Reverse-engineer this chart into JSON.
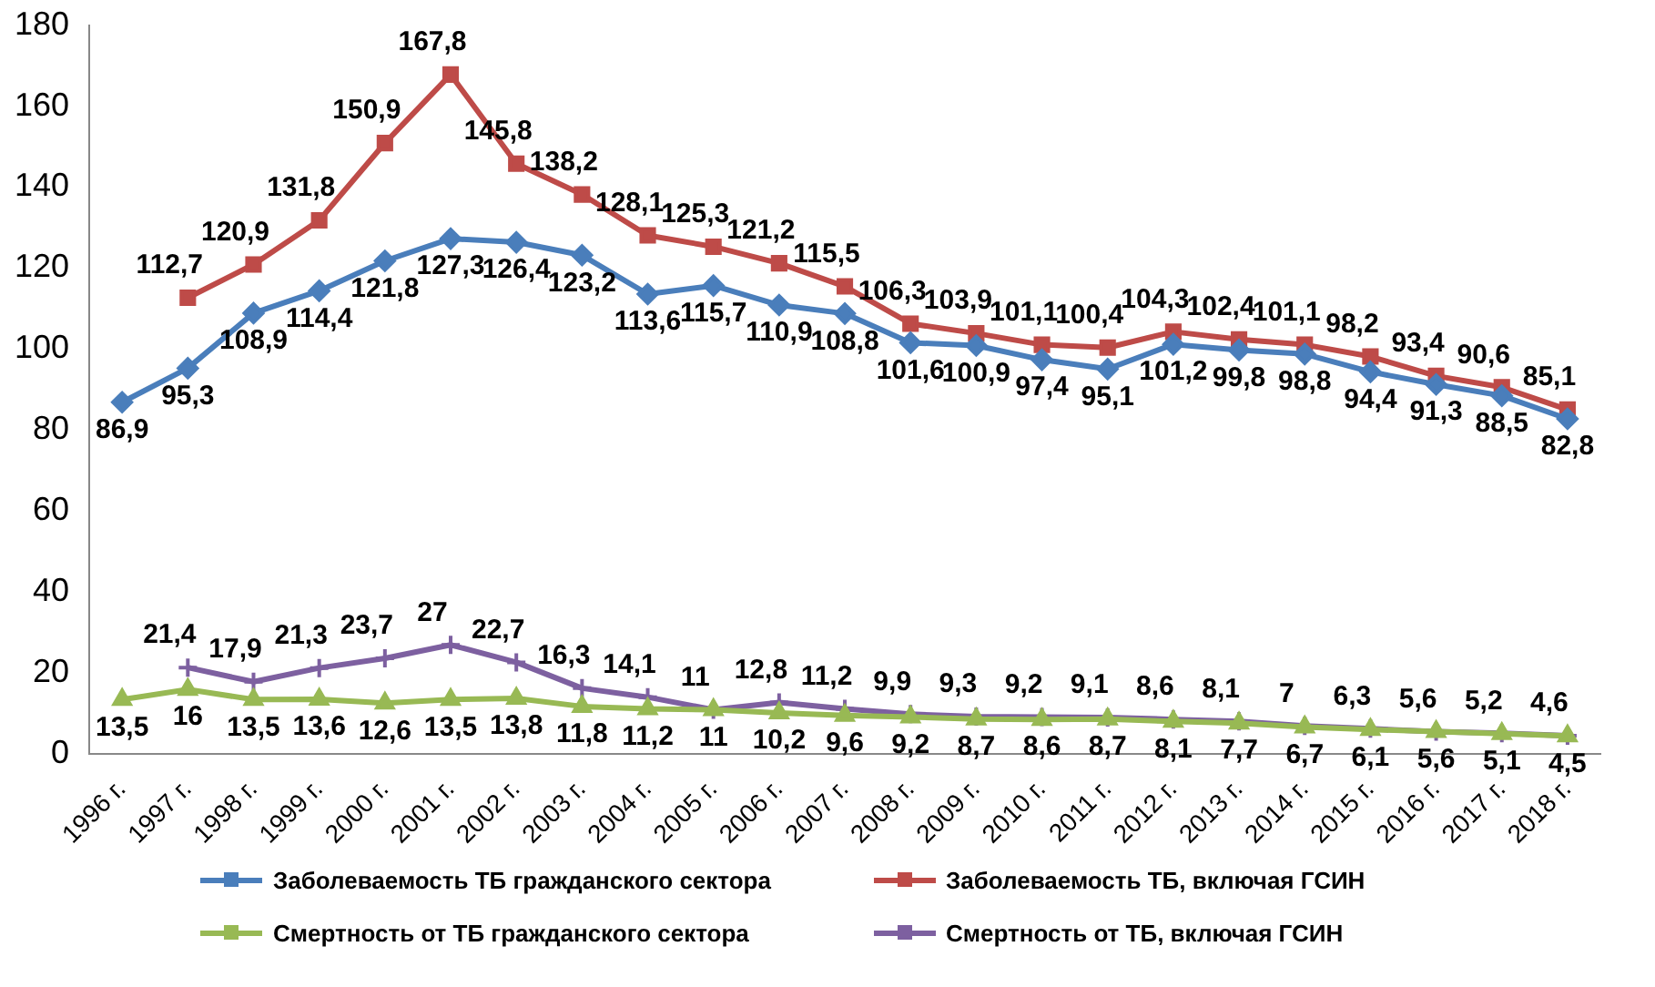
{
  "chart_data": {
    "type": "line",
    "categories": [
      "1996 г.",
      "1997 г.",
      "1998 г.",
      "1999 г.",
      "2000 г.",
      "2001 г.",
      "2002 г.",
      "2003 г.",
      "2004 г.",
      "2005 г.",
      "2006 г.",
      "2007 г.",
      "2008 г.",
      "2009 г.",
      "2010 г.",
      "2011 г.",
      "2012 г.",
      "2013 г.",
      "2014 г.",
      "2015 г.",
      "2016 г.",
      "2017 г.",
      "2018 г."
    ],
    "ylim": [
      0,
      180
    ],
    "yticks": [
      0,
      20,
      40,
      60,
      80,
      100,
      120,
      140,
      160,
      180
    ],
    "grid": false,
    "legend": "bottom",
    "line_style": "solid",
    "series": [
      {
        "name": "Заболеваемость ТБ гражданского сектора",
        "color": "#4a7ebb",
        "marker": "diamond",
        "values": [
          86.9,
          95.3,
          108.9,
          114.4,
          121.8,
          127.3,
          126.4,
          123.2,
          113.6,
          115.7,
          110.9,
          108.8,
          101.6,
          100.9,
          97.4,
          95.1,
          101.2,
          99.8,
          98.8,
          94.4,
          91.3,
          88.5,
          82.8
        ],
        "value_labels": [
          "86,9",
          "95,3",
          "108,9",
          "114,4",
          "121,8",
          "127,3",
          "126,4",
          "123,2",
          "113,6",
          "115,7",
          "110,9",
          "108,8",
          "101,6",
          "100,9",
          "97,4",
          "95,1",
          "101,2",
          "99,8",
          "98,8",
          "94,4",
          "91,3",
          "88,5",
          "82,8"
        ]
      },
      {
        "name": "Заболеваемость ТБ, включая ГСИН",
        "color": "#be4b48",
        "marker": "square",
        "values": [
          null,
          112.7,
          120.9,
          131.8,
          150.9,
          167.8,
          145.8,
          138.2,
          128.1,
          125.3,
          121.2,
          115.5,
          106.3,
          103.9,
          101.1,
          100.4,
          104.3,
          102.4,
          101.1,
          98.2,
          93.4,
          90.6,
          85.1
        ],
        "value_labels": [
          null,
          "112,7",
          "120,9",
          "131,8",
          "150,9",
          "167,8",
          "145,8",
          "138,2",
          "128,1",
          "125,3",
          "121,2",
          "115,5",
          "106,3",
          "103,9",
          "101,1",
          "100,4",
          "104,3",
          "102,4",
          "101,1",
          "98,2",
          "93,4",
          "90,6",
          "85,1"
        ]
      },
      {
        "name": "Смертность от ТБ гражданского сектора",
        "color": "#98b954",
        "marker": "triangle",
        "values": [
          13.5,
          16,
          13.5,
          13.6,
          12.6,
          13.5,
          13.8,
          11.8,
          11.2,
          11,
          10.2,
          9.6,
          9.2,
          8.7,
          8.6,
          8.7,
          8.1,
          7.7,
          6.7,
          6.1,
          5.6,
          5.1,
          4.5
        ],
        "value_labels": [
          "13,5",
          "16",
          "13,5",
          "13,6",
          "12,6",
          "13,5",
          "13,8",
          "11,8",
          "11,2",
          "11",
          "10,2",
          "9,6",
          "9,2",
          "8,7",
          "8,6",
          "8,7",
          "8,1",
          "7,7",
          "6,7",
          "6,1",
          "5,6",
          "5,1",
          "4,5"
        ]
      },
      {
        "name": "Смертность от ТБ, включая ГСИН",
        "color": "#7d60a0",
        "marker": "cross",
        "values": [
          null,
          21.4,
          17.9,
          21.3,
          23.7,
          27,
          22.7,
          16.3,
          14.1,
          11,
          12.8,
          11.2,
          9.9,
          9.3,
          9.2,
          9.1,
          8.6,
          8.1,
          7,
          6.3,
          5.6,
          5.2,
          4.6
        ],
        "value_labels": [
          null,
          "21,4",
          "17,9",
          "21,3",
          "23,7",
          "27",
          "22,7",
          "16,3",
          "14,1",
          "11",
          "12,8",
          "11,2",
          "9,9",
          "9,3",
          "9,2",
          "9,1",
          "8,6",
          "8,1",
          "7",
          "6,3",
          "5,6",
          "5,2",
          "4,6"
        ]
      }
    ]
  }
}
